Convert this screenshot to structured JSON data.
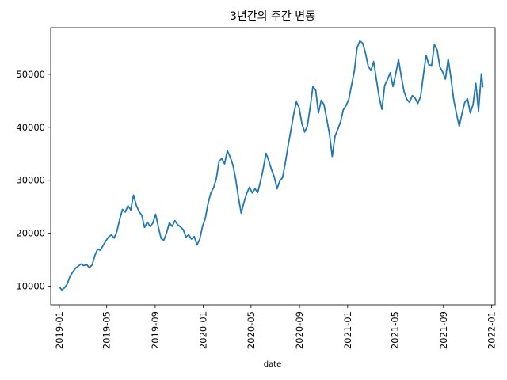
{
  "chart_data": {
    "type": "line",
    "title": "3년간의 주간 변동",
    "xlabel": "date",
    "ylabel": "",
    "grid": false,
    "legend": "none",
    "xlim": [
      "2018-12-10",
      "2022-01-10"
    ],
    "ylim": [
      6500,
      58800
    ],
    "x_ticks": [
      "2019-01",
      "2019-05",
      "2019-09",
      "2020-01",
      "2020-05",
      "2020-09",
      "2021-01",
      "2021-05",
      "2021-09",
      "2022-01"
    ],
    "y_ticks": [
      10000,
      20000,
      30000,
      40000,
      50000
    ],
    "line_color": "#1f77b4",
    "series": [
      {
        "points": [
          [
            "2019-01-02",
            9800
          ],
          [
            "2019-01-07",
            9300
          ],
          [
            "2019-01-14",
            9700
          ],
          [
            "2019-01-21",
            10400
          ],
          [
            "2019-01-28",
            11900
          ],
          [
            "2019-02-04",
            12700
          ],
          [
            "2019-02-11",
            13400
          ],
          [
            "2019-02-18",
            13800
          ],
          [
            "2019-02-25",
            14200
          ],
          [
            "2019-03-04",
            13900
          ],
          [
            "2019-03-11",
            14100
          ],
          [
            "2019-03-18",
            13500
          ],
          [
            "2019-03-25",
            14000
          ],
          [
            "2019-04-01",
            15800
          ],
          [
            "2019-04-08",
            17000
          ],
          [
            "2019-04-15",
            16800
          ],
          [
            "2019-04-22",
            17700
          ],
          [
            "2019-04-29",
            18600
          ],
          [
            "2019-05-06",
            19300
          ],
          [
            "2019-05-13",
            19700
          ],
          [
            "2019-05-20",
            19100
          ],
          [
            "2019-05-27",
            20400
          ],
          [
            "2019-06-03",
            22600
          ],
          [
            "2019-06-10",
            24500
          ],
          [
            "2019-06-17",
            24000
          ],
          [
            "2019-06-24",
            25200
          ],
          [
            "2019-07-01",
            24400
          ],
          [
            "2019-07-08",
            27200
          ],
          [
            "2019-07-15",
            25300
          ],
          [
            "2019-07-22",
            24100
          ],
          [
            "2019-07-29",
            23400
          ],
          [
            "2019-08-05",
            21100
          ],
          [
            "2019-08-12",
            22100
          ],
          [
            "2019-08-19",
            21300
          ],
          [
            "2019-08-26",
            21900
          ],
          [
            "2019-09-02",
            23600
          ],
          [
            "2019-09-09",
            21200
          ],
          [
            "2019-09-16",
            19000
          ],
          [
            "2019-09-23",
            18700
          ],
          [
            "2019-09-30",
            20100
          ],
          [
            "2019-10-07",
            22000
          ],
          [
            "2019-10-14",
            21300
          ],
          [
            "2019-10-21",
            22400
          ],
          [
            "2019-10-28",
            21600
          ],
          [
            "2019-11-04",
            21200
          ],
          [
            "2019-11-11",
            20700
          ],
          [
            "2019-11-18",
            19300
          ],
          [
            "2019-11-25",
            19700
          ],
          [
            "2019-12-02",
            18900
          ],
          [
            "2019-12-09",
            19400
          ],
          [
            "2019-12-16",
            17800
          ],
          [
            "2019-12-23",
            18900
          ],
          [
            "2019-12-30",
            21300
          ],
          [
            "2020-01-06",
            22800
          ],
          [
            "2020-01-13",
            25600
          ],
          [
            "2020-01-20",
            27600
          ],
          [
            "2020-01-27",
            28600
          ],
          [
            "2020-02-03",
            30300
          ],
          [
            "2020-02-10",
            33600
          ],
          [
            "2020-02-17",
            34100
          ],
          [
            "2020-02-24",
            33100
          ],
          [
            "2020-03-02",
            35600
          ],
          [
            "2020-03-09",
            34400
          ],
          [
            "2020-03-16",
            32900
          ],
          [
            "2020-03-23",
            30300
          ],
          [
            "2020-03-30",
            26800
          ],
          [
            "2020-04-06",
            23800
          ],
          [
            "2020-04-13",
            25800
          ],
          [
            "2020-04-20",
            27500
          ],
          [
            "2020-04-27",
            28700
          ],
          [
            "2020-05-04",
            27600
          ],
          [
            "2020-05-11",
            28400
          ],
          [
            "2020-05-18",
            27700
          ],
          [
            "2020-05-25",
            29800
          ],
          [
            "2020-06-01",
            32200
          ],
          [
            "2020-06-08",
            35100
          ],
          [
            "2020-06-15",
            33700
          ],
          [
            "2020-06-22",
            32000
          ],
          [
            "2020-06-29",
            30600
          ],
          [
            "2020-07-06",
            28400
          ],
          [
            "2020-07-13",
            29900
          ],
          [
            "2020-07-20",
            30500
          ],
          [
            "2020-07-27",
            33300
          ],
          [
            "2020-08-03",
            36500
          ],
          [
            "2020-08-10",
            39400
          ],
          [
            "2020-08-17",
            42400
          ],
          [
            "2020-08-24",
            44800
          ],
          [
            "2020-08-31",
            43700
          ],
          [
            "2020-09-07",
            40700
          ],
          [
            "2020-09-14",
            39100
          ],
          [
            "2020-09-21",
            40300
          ],
          [
            "2020-09-28",
            43800
          ],
          [
            "2020-10-05",
            47700
          ],
          [
            "2020-10-12",
            47000
          ],
          [
            "2020-10-19",
            42700
          ],
          [
            "2020-10-26",
            45100
          ],
          [
            "2020-11-02",
            44300
          ],
          [
            "2020-11-09",
            41600
          ],
          [
            "2020-11-16",
            38700
          ],
          [
            "2020-11-23",
            34500
          ],
          [
            "2020-11-30",
            38300
          ],
          [
            "2020-12-07",
            39600
          ],
          [
            "2020-12-14",
            41000
          ],
          [
            "2020-12-21",
            43300
          ],
          [
            "2020-12-28",
            44100
          ],
          [
            "2021-01-04",
            45300
          ],
          [
            "2021-01-11",
            48000
          ],
          [
            "2021-01-18",
            50600
          ],
          [
            "2021-01-25",
            55000
          ],
          [
            "2021-02-01",
            56300
          ],
          [
            "2021-02-08",
            55900
          ],
          [
            "2021-02-15",
            54100
          ],
          [
            "2021-02-22",
            51600
          ],
          [
            "2021-03-01",
            50700
          ],
          [
            "2021-03-08",
            52400
          ],
          [
            "2021-03-15",
            49000
          ],
          [
            "2021-03-22",
            45700
          ],
          [
            "2021-03-29",
            43400
          ],
          [
            "2021-04-05",
            47900
          ],
          [
            "2021-04-12",
            49000
          ],
          [
            "2021-04-19",
            50300
          ],
          [
            "2021-04-26",
            47700
          ],
          [
            "2021-05-03",
            50100
          ],
          [
            "2021-05-10",
            52800
          ],
          [
            "2021-05-17",
            49600
          ],
          [
            "2021-05-24",
            46800
          ],
          [
            "2021-05-31",
            45300
          ],
          [
            "2021-06-07",
            44700
          ],
          [
            "2021-06-14",
            46000
          ],
          [
            "2021-06-21",
            45500
          ],
          [
            "2021-06-28",
            44500
          ],
          [
            "2021-07-05",
            45800
          ],
          [
            "2021-07-12",
            49800
          ],
          [
            "2021-07-19",
            53600
          ],
          [
            "2021-07-26",
            51800
          ],
          [
            "2021-08-02",
            51700
          ],
          [
            "2021-08-09",
            55600
          ],
          [
            "2021-08-16",
            54600
          ],
          [
            "2021-08-23",
            51400
          ],
          [
            "2021-08-30",
            50400
          ],
          [
            "2021-09-06",
            49100
          ],
          [
            "2021-09-13",
            52900
          ],
          [
            "2021-09-20",
            49300
          ],
          [
            "2021-09-27",
            45200
          ],
          [
            "2021-10-04",
            42600
          ],
          [
            "2021-10-11",
            40200
          ],
          [
            "2021-10-18",
            42600
          ],
          [
            "2021-10-25",
            44700
          ],
          [
            "2021-11-01",
            45400
          ],
          [
            "2021-11-08",
            42700
          ],
          [
            "2021-11-15",
            44300
          ],
          [
            "2021-11-22",
            48300
          ],
          [
            "2021-11-29",
            43100
          ],
          [
            "2021-12-06",
            50100
          ],
          [
            "2021-12-10",
            47600
          ]
        ]
      }
    ]
  }
}
